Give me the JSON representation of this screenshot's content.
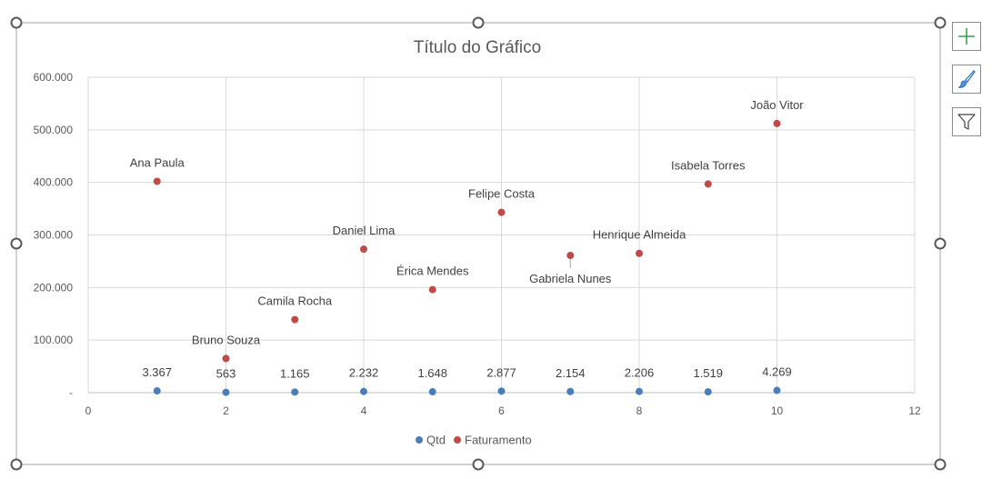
{
  "chart_data": {
    "type": "scatter",
    "title": "Título do Gráfico",
    "xlabel": "",
    "ylabel": "",
    "xlim": [
      0,
      12
    ],
    "ylim": [
      0,
      600000
    ],
    "x_ticks": [
      "0",
      "2",
      "4",
      "6",
      "8",
      "10",
      "12"
    ],
    "y_ticks": [
      "-",
      "100.000",
      "200.000",
      "300.000",
      "400.000",
      "500.000",
      "600.000"
    ],
    "grid": true,
    "legend": "bottom",
    "series": [
      {
        "name": "Qtd",
        "color": "#4a7ebb",
        "x": [
          1,
          2,
          3,
          4,
          5,
          6,
          7,
          8,
          9,
          10
        ],
        "y": [
          3367,
          563,
          1165,
          2232,
          1648,
          2877,
          2154,
          2206,
          1519,
          4269
        ],
        "labels": [
          "3.367",
          "563",
          "1.165",
          "2.232",
          "1.648",
          "2.877",
          "2.154",
          "2.206",
          "1.519",
          "4.269"
        ]
      },
      {
        "name": "Faturamento",
        "color": "#be4b48",
        "x": [
          1,
          2,
          3,
          4,
          5,
          6,
          7,
          8,
          9,
          10
        ],
        "y": [
          402000,
          65000,
          139000,
          273000,
          196000,
          343000,
          261000,
          265000,
          397000,
          512000
        ],
        "labels": [
          "Ana Paula",
          "Bruno Souza",
          "Camila Rocha",
          "Daniel Lima",
          "Érica Mendes",
          "Felipe Costa",
          "Gabriela Nunes",
          "Henrique Almeida",
          "Isabela Torres",
          "João Vitor"
        ]
      }
    ]
  },
  "side_buttons": [
    {
      "icon": "plus-icon"
    },
    {
      "icon": "brush-icon"
    },
    {
      "icon": "filter-icon"
    }
  ]
}
